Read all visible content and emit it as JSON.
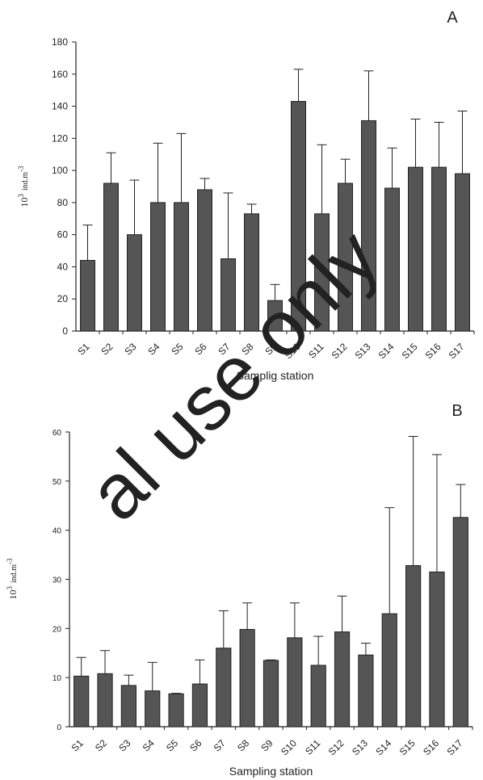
{
  "chart_data": [
    {
      "type": "bar",
      "panel_label": "A",
      "title": "",
      "xlabel": "Samplig station",
      "ylabel": {
        "base": "10",
        "exponent": "3",
        "unit": "ind.m",
        "unit_exponent": "-3"
      },
      "ylim": [
        0,
        180
      ],
      "yticks": [
        0,
        20,
        40,
        60,
        80,
        100,
        120,
        140,
        160,
        180
      ],
      "categories": [
        "S1",
        "S2",
        "S3",
        "S4",
        "S5",
        "S6",
        "S7",
        "S8",
        "S9",
        "S10",
        "S11",
        "S12",
        "S13",
        "S14",
        "S15",
        "S16",
        "S17"
      ],
      "values": [
        44,
        92,
        60,
        80,
        80,
        88,
        45,
        73,
        19,
        143,
        73,
        92,
        131,
        89,
        102,
        102,
        98
      ],
      "error_upper": [
        66,
        111,
        94,
        117,
        123,
        95,
        86,
        79,
        29,
        163,
        116,
        107,
        162,
        114,
        132,
        130,
        137
      ],
      "bar_color": "#555555",
      "grid": false
    },
    {
      "type": "bar",
      "panel_label": "B",
      "title": "",
      "xlabel": "Sampling station",
      "ylabel": {
        "base": "10",
        "exponent": "3",
        "unit": "ind.m",
        "unit_exponent": "-3"
      },
      "ylim": [
        0,
        60
      ],
      "yticks": [
        0,
        10,
        20,
        30,
        40,
        50,
        60
      ],
      "categories": [
        "S1",
        "S2",
        "S3",
        "S4",
        "S5",
        "S6",
        "S7",
        "S8",
        "S9",
        "S10",
        "S11",
        "S12",
        "S13",
        "S14",
        "S15",
        "S16",
        "S17"
      ],
      "values": [
        10.3,
        10.8,
        8.4,
        7.3,
        6.7,
        8.7,
        16.0,
        19.8,
        13.5,
        18.1,
        12.5,
        19.3,
        14.6,
        23.0,
        32.8,
        31.5,
        42.6
      ],
      "error_upper": [
        14.1,
        15.5,
        10.5,
        13.1,
        6.8,
        13.6,
        23.6,
        25.2,
        13.6,
        25.2,
        18.4,
        26.6,
        17.0,
        44.6,
        59.1,
        55.4,
        49.3
      ],
      "bar_color": "#555555",
      "grid": false
    }
  ],
  "watermark": {
    "text": "al use only",
    "color": "#e6e6e6"
  }
}
